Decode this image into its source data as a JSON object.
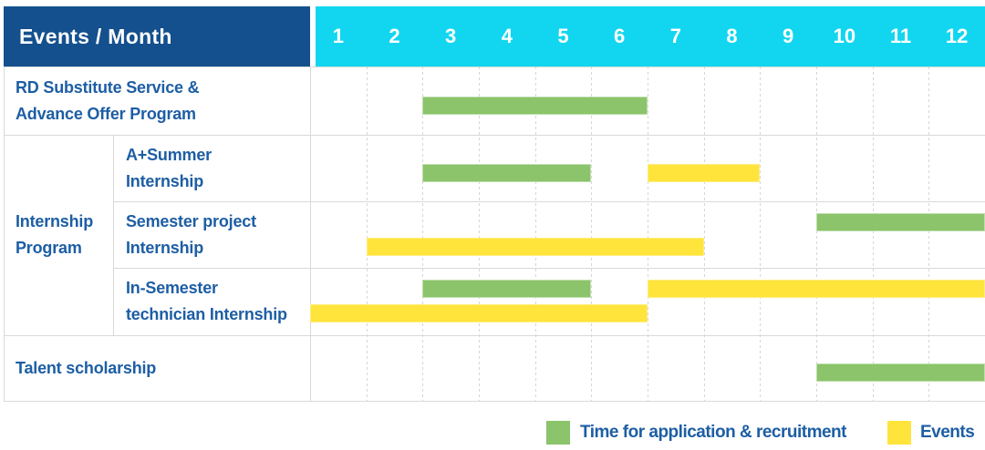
{
  "colors": {
    "navy": "#14508E",
    "cyan": "#12D6F0",
    "green": "#8BC46B",
    "yellow": "#FFE43C",
    "label_blue": "#1D5EA4",
    "grid": "#D9D9D9"
  },
  "ui": {
    "header": {
      "label": "Events / Month",
      "months": [
        "1",
        "2",
        "3",
        "4",
        "5",
        "6",
        "7",
        "8",
        "9",
        "10",
        "11",
        "12"
      ]
    },
    "group": {
      "label_lines": [
        "Internship",
        "Program"
      ]
    },
    "rows": [
      {
        "id": "rd-substitute",
        "group": null,
        "label_lines": [
          "RD Substitute Service &",
          "Advance Offer Program"
        ],
        "bars": [
          {
            "color": "green",
            "start": 3,
            "end": 6,
            "lane": "single"
          }
        ]
      },
      {
        "id": "a-summer-internship",
        "group": "internship-program",
        "label_lines": [
          "A+Summer",
          "Internship"
        ],
        "bars": [
          {
            "color": "green",
            "start": 3,
            "end": 5,
            "lane": "single"
          },
          {
            "color": "yellow",
            "start": 7,
            "end": 8,
            "lane": "single"
          }
        ]
      },
      {
        "id": "semester-project-internship",
        "group": "internship-program",
        "label_lines": [
          "Semester project",
          "Internship"
        ],
        "bars": [
          {
            "color": "green",
            "start": 10,
            "end": 12,
            "lane": "upper"
          },
          {
            "color": "yellow",
            "start": 2,
            "end": 7,
            "lane": "lower"
          }
        ]
      },
      {
        "id": "in-semester-technician-internship",
        "group": "internship-program",
        "label_lines": [
          "In-Semester",
          "technician Internship"
        ],
        "bars": [
          {
            "color": "green",
            "start": 3,
            "end": 5,
            "lane": "upper"
          },
          {
            "color": "yellow",
            "start": 7,
            "end": 12,
            "lane": "upper"
          },
          {
            "color": "yellow",
            "start": 1,
            "end": 6,
            "lane": "lower"
          }
        ]
      },
      {
        "id": "talent-scholarship",
        "group": null,
        "label_lines": [
          "Talent scholarship"
        ],
        "bars": [
          {
            "color": "green",
            "start": 10,
            "end": 12,
            "lane": "single"
          }
        ]
      }
    ],
    "legend": {
      "items": [
        {
          "color": "green",
          "label": "Time for application & recruitment"
        },
        {
          "color": "yellow",
          "label": "Events"
        }
      ]
    }
  },
  "chart_data": {
    "type": "gantt",
    "title": "Events / Month",
    "x_axis": {
      "label": "Month",
      "ticks": [
        1,
        2,
        3,
        4,
        5,
        6,
        7,
        8,
        9,
        10,
        11,
        12
      ],
      "range": [
        1,
        12
      ]
    },
    "legend_position": "bottom-right",
    "grid": true,
    "series_legend": [
      {
        "name": "Time for application & recruitment",
        "color": "#8BC46B"
      },
      {
        "name": "Events",
        "color": "#FFE43C"
      }
    ],
    "rows": [
      {
        "group": null,
        "label": "RD Substitute Service & Advance Offer Program",
        "bars": [
          {
            "series": "Time for application & recruitment",
            "start_month": 3,
            "end_month": 6
          }
        ]
      },
      {
        "group": "Internship Program",
        "label": "A+Summer Internship",
        "bars": [
          {
            "series": "Time for application & recruitment",
            "start_month": 3,
            "end_month": 5
          },
          {
            "series": "Events",
            "start_month": 7,
            "end_month": 8
          }
        ]
      },
      {
        "group": "Internship Program",
        "label": "Semester project Internship",
        "bars": [
          {
            "series": "Time for application & recruitment",
            "start_month": 10,
            "end_month": 12
          },
          {
            "series": "Events",
            "start_month": 2,
            "end_month": 7
          }
        ]
      },
      {
        "group": "Internship Program",
        "label": "In-Semester technician Internship",
        "bars": [
          {
            "series": "Time for application & recruitment",
            "start_month": 3,
            "end_month": 5
          },
          {
            "series": "Events",
            "start_month": 7,
            "end_month": 12
          },
          {
            "series": "Events",
            "start_month": 1,
            "end_month": 6
          }
        ]
      },
      {
        "group": null,
        "label": "Talent scholarship",
        "bars": [
          {
            "series": "Time for application & recruitment",
            "start_month": 10,
            "end_month": 12
          }
        ]
      }
    ]
  }
}
